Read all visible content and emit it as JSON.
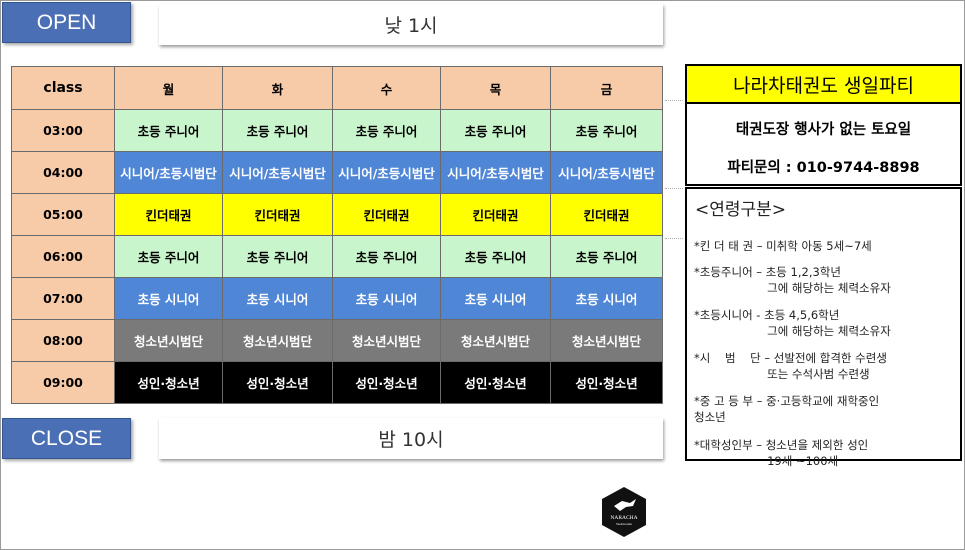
{
  "open": {
    "label": "OPEN",
    "time": "낮 1시"
  },
  "close": {
    "label": "CLOSE",
    "time": "밤 10시"
  },
  "schedule": {
    "header": [
      "class",
      "월",
      "화",
      "수",
      "목",
      "금"
    ],
    "rows": [
      {
        "time": "03:00",
        "class": "초등 주니어"
      },
      {
        "time": "04:00",
        "class": "시니어/초등시범단"
      },
      {
        "time": "05:00",
        "class": "킨더태권"
      },
      {
        "time": "06:00",
        "class": "초등 주니어"
      },
      {
        "time": "07:00",
        "class": "초등 시니어"
      },
      {
        "time": "08:00",
        "class": "청소년시범단"
      },
      {
        "time": "09:00",
        "class": "성인·청소년"
      }
    ],
    "row_colors": [
      "#c9f5cd",
      "#4f86d6",
      "#ffff00",
      "#c9f5cd",
      "#4f86d6",
      "#7a7a7a",
      "#000000"
    ]
  },
  "party": {
    "title": "나라차태권도 생일파티",
    "line1": "태권도장 행사가 없는 토요일",
    "line2": "파티문의 : 010-9744-8898"
  },
  "age": {
    "title": "<연령구분>",
    "items": [
      "*킨 더 태 권 – 미취학 아동 5세~7세",
      "*초등주니어 – 초등 1,2,3학년\n                    그에 해당하는 체력소유자",
      "*초등시니어 - 초등 4,5,6학년\n                    그에 해당하는 체력소유자",
      "*시    범    단 – 선발전에 합격한 수련생\n                    또는 수석사범 수련생",
      "*중 고 등 부 – 중·고등학교에 재학중인\n청소년",
      "*대학성인부 – 청소년을 제외한 성인\n                    19세 ~100세"
    ]
  },
  "logo": {
    "name": "NARACHA",
    "sub": "Taekwondo"
  }
}
